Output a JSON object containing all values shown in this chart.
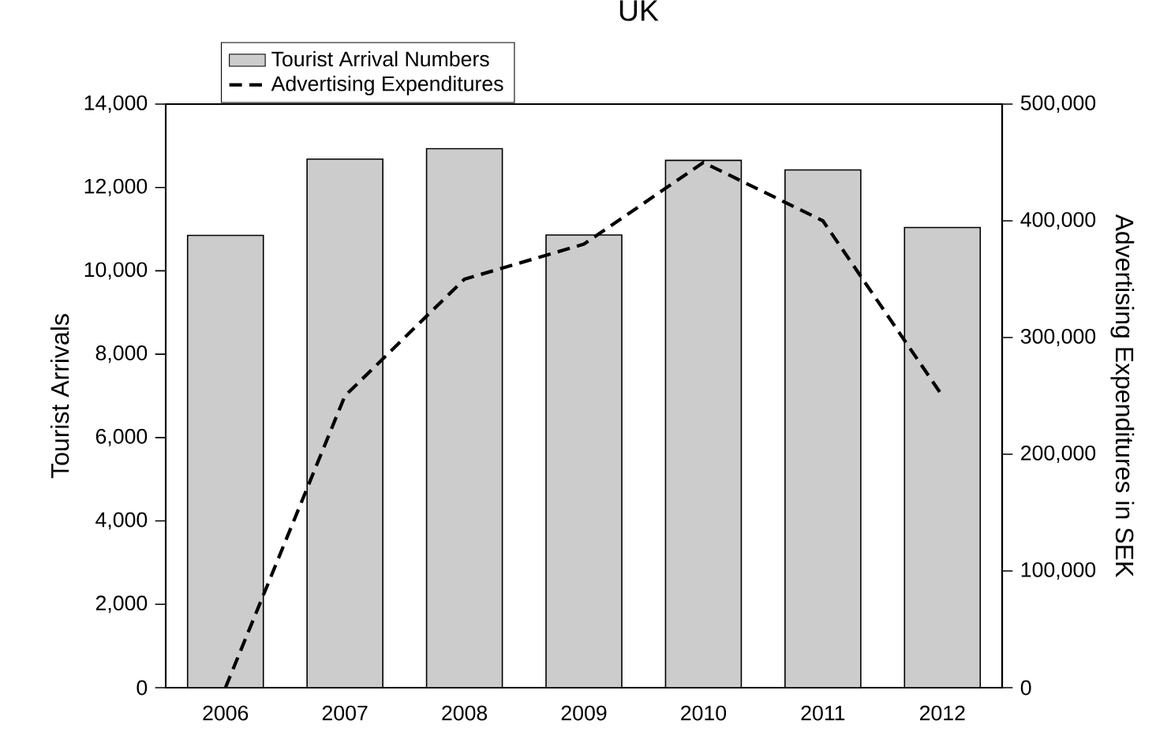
{
  "chart_data": {
    "type": "bar",
    "title": "UK",
    "ylabel": "Tourist Arrivals",
    "y2label": "Advertising Expenditures in SEK",
    "categories": [
      "2006",
      "2007",
      "2008",
      "2009",
      "2010",
      "2011",
      "2012"
    ],
    "ylim": [
      0,
      14000
    ],
    "yticks": [
      0,
      {
        "value": 2000,
        "label": "2,000"
      },
      {
        "value": 4000,
        "label": "4,000"
      },
      {
        "value": 6000,
        "label": "6,000"
      },
      {
        "value": 8000,
        "label": "8,000"
      },
      {
        "value": 10000,
        "label": "10,000"
      },
      {
        "value": 12000,
        "label": "12,000"
      },
      {
        "value": 14000,
        "label": "14,000"
      }
    ],
    "y2lim": [
      0,
      500000
    ],
    "y2ticks": [
      0,
      {
        "value": 100000,
        "label": "100,000"
      },
      {
        "value": 200000,
        "label": "200,000"
      },
      {
        "value": 300000,
        "label": "300,000"
      },
      {
        "value": 400000,
        "label": "400,000"
      },
      {
        "value": 500000,
        "label": "500,000"
      }
    ],
    "legend": "top left",
    "series": [
      {
        "name": "Tourist Arrival Numbers",
        "color": "#cccccc",
        "values": [
          10850,
          12680,
          12930,
          10860,
          12650,
          12420,
          11040
        ]
      },
      {
        "name": "Advertising Expenditures",
        "type": "line",
        "axis": "y2",
        "color": "#000000",
        "line_style": "dashed",
        "marker": "none",
        "values": [
          0,
          250000,
          350000,
          380000,
          450000,
          400000,
          250000
        ]
      }
    ]
  }
}
